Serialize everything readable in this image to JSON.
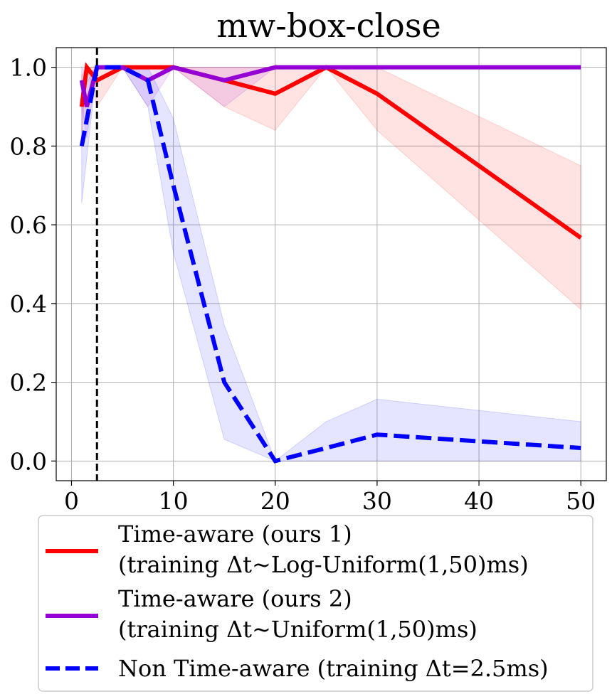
{
  "chart_data": {
    "type": "line",
    "title": "mw-box-close",
    "xlabel": "",
    "ylabel": "",
    "xlim": [
      -1.5,
      52.5
    ],
    "ylim": [
      -0.05,
      1.05
    ],
    "xticks": [
      0,
      10,
      20,
      30,
      40,
      50
    ],
    "xtick_labels": [
      "0",
      "10",
      "20",
      "30",
      "40",
      "50"
    ],
    "yticks": [
      0.0,
      0.2,
      0.4,
      0.6,
      0.8,
      1.0
    ],
    "ytick_labels": [
      "0.0",
      "0.2",
      "0.4",
      "0.6",
      "0.8",
      "1.0"
    ],
    "grid": true,
    "vline": {
      "x": 2.5,
      "style": "dashed",
      "color": "#000000"
    },
    "legend_position": "below",
    "series": [
      {
        "name": "Time-aware (ours 1)",
        "name_line2": "(training Δt~Log-Uniform(1,50)ms)",
        "color": "#ff0000",
        "style": "solid",
        "x": [
          1,
          1.5,
          2.5,
          5,
          7.5,
          10,
          15,
          20,
          25,
          30,
          50
        ],
        "y": [
          0.9,
          1.0,
          0.967,
          1.0,
          1.0,
          1.0,
          0.967,
          0.933,
          1.0,
          0.933,
          0.567
        ],
        "lower": [
          0.82,
          1.0,
          0.9,
          1.0,
          1.0,
          1.0,
          0.9,
          0.84,
          1.0,
          0.84,
          0.385
        ],
        "upper": [
          0.98,
          1.0,
          1.0,
          1.0,
          1.0,
          1.0,
          1.0,
          1.0,
          1.0,
          1.0,
          0.75
        ],
        "band_color": "#ff0000",
        "band_opacity": 0.11
      },
      {
        "name": "Time-aware (ours 2)",
        "name_line2": "(training Δt~Uniform(1,50)ms)",
        "color": "#9400d3",
        "style": "solid",
        "x": [
          1,
          1.5,
          2.5,
          5,
          7.5,
          10,
          15,
          20,
          25,
          30,
          50
        ],
        "y": [
          0.967,
          0.9,
          1.0,
          1.0,
          0.967,
          1.0,
          0.967,
          1.0,
          1.0,
          1.0,
          1.0
        ],
        "lower": [
          0.9,
          0.82,
          1.0,
          1.0,
          0.9,
          1.0,
          0.9,
          1.0,
          1.0,
          1.0,
          1.0
        ],
        "upper": [
          1.0,
          0.98,
          1.0,
          1.0,
          1.0,
          1.0,
          1.0,
          1.0,
          1.0,
          1.0,
          1.0
        ],
        "band_color": "#9400d3",
        "band_opacity": 0.11
      },
      {
        "name": "Non Time-aware (training Δt=2.5ms)",
        "name_line2": "",
        "color": "#0000ff",
        "style": "dashed",
        "x": [
          1,
          2.5,
          5,
          7.5,
          10,
          15,
          20,
          25,
          30,
          50
        ],
        "y": [
          0.8,
          1.0,
          1.0,
          0.967,
          0.7,
          0.2,
          0.0,
          0.033,
          0.067,
          0.033
        ],
        "lower": [
          0.655,
          1.0,
          1.0,
          0.9,
          0.53,
          0.055,
          0.0,
          0.0,
          0.0,
          0.0
        ],
        "upper": [
          0.945,
          1.0,
          1.0,
          1.0,
          0.87,
          0.345,
          0.0,
          0.1,
          0.157,
          0.1
        ],
        "band_color": "#0000ff",
        "band_opacity": 0.1
      }
    ]
  }
}
